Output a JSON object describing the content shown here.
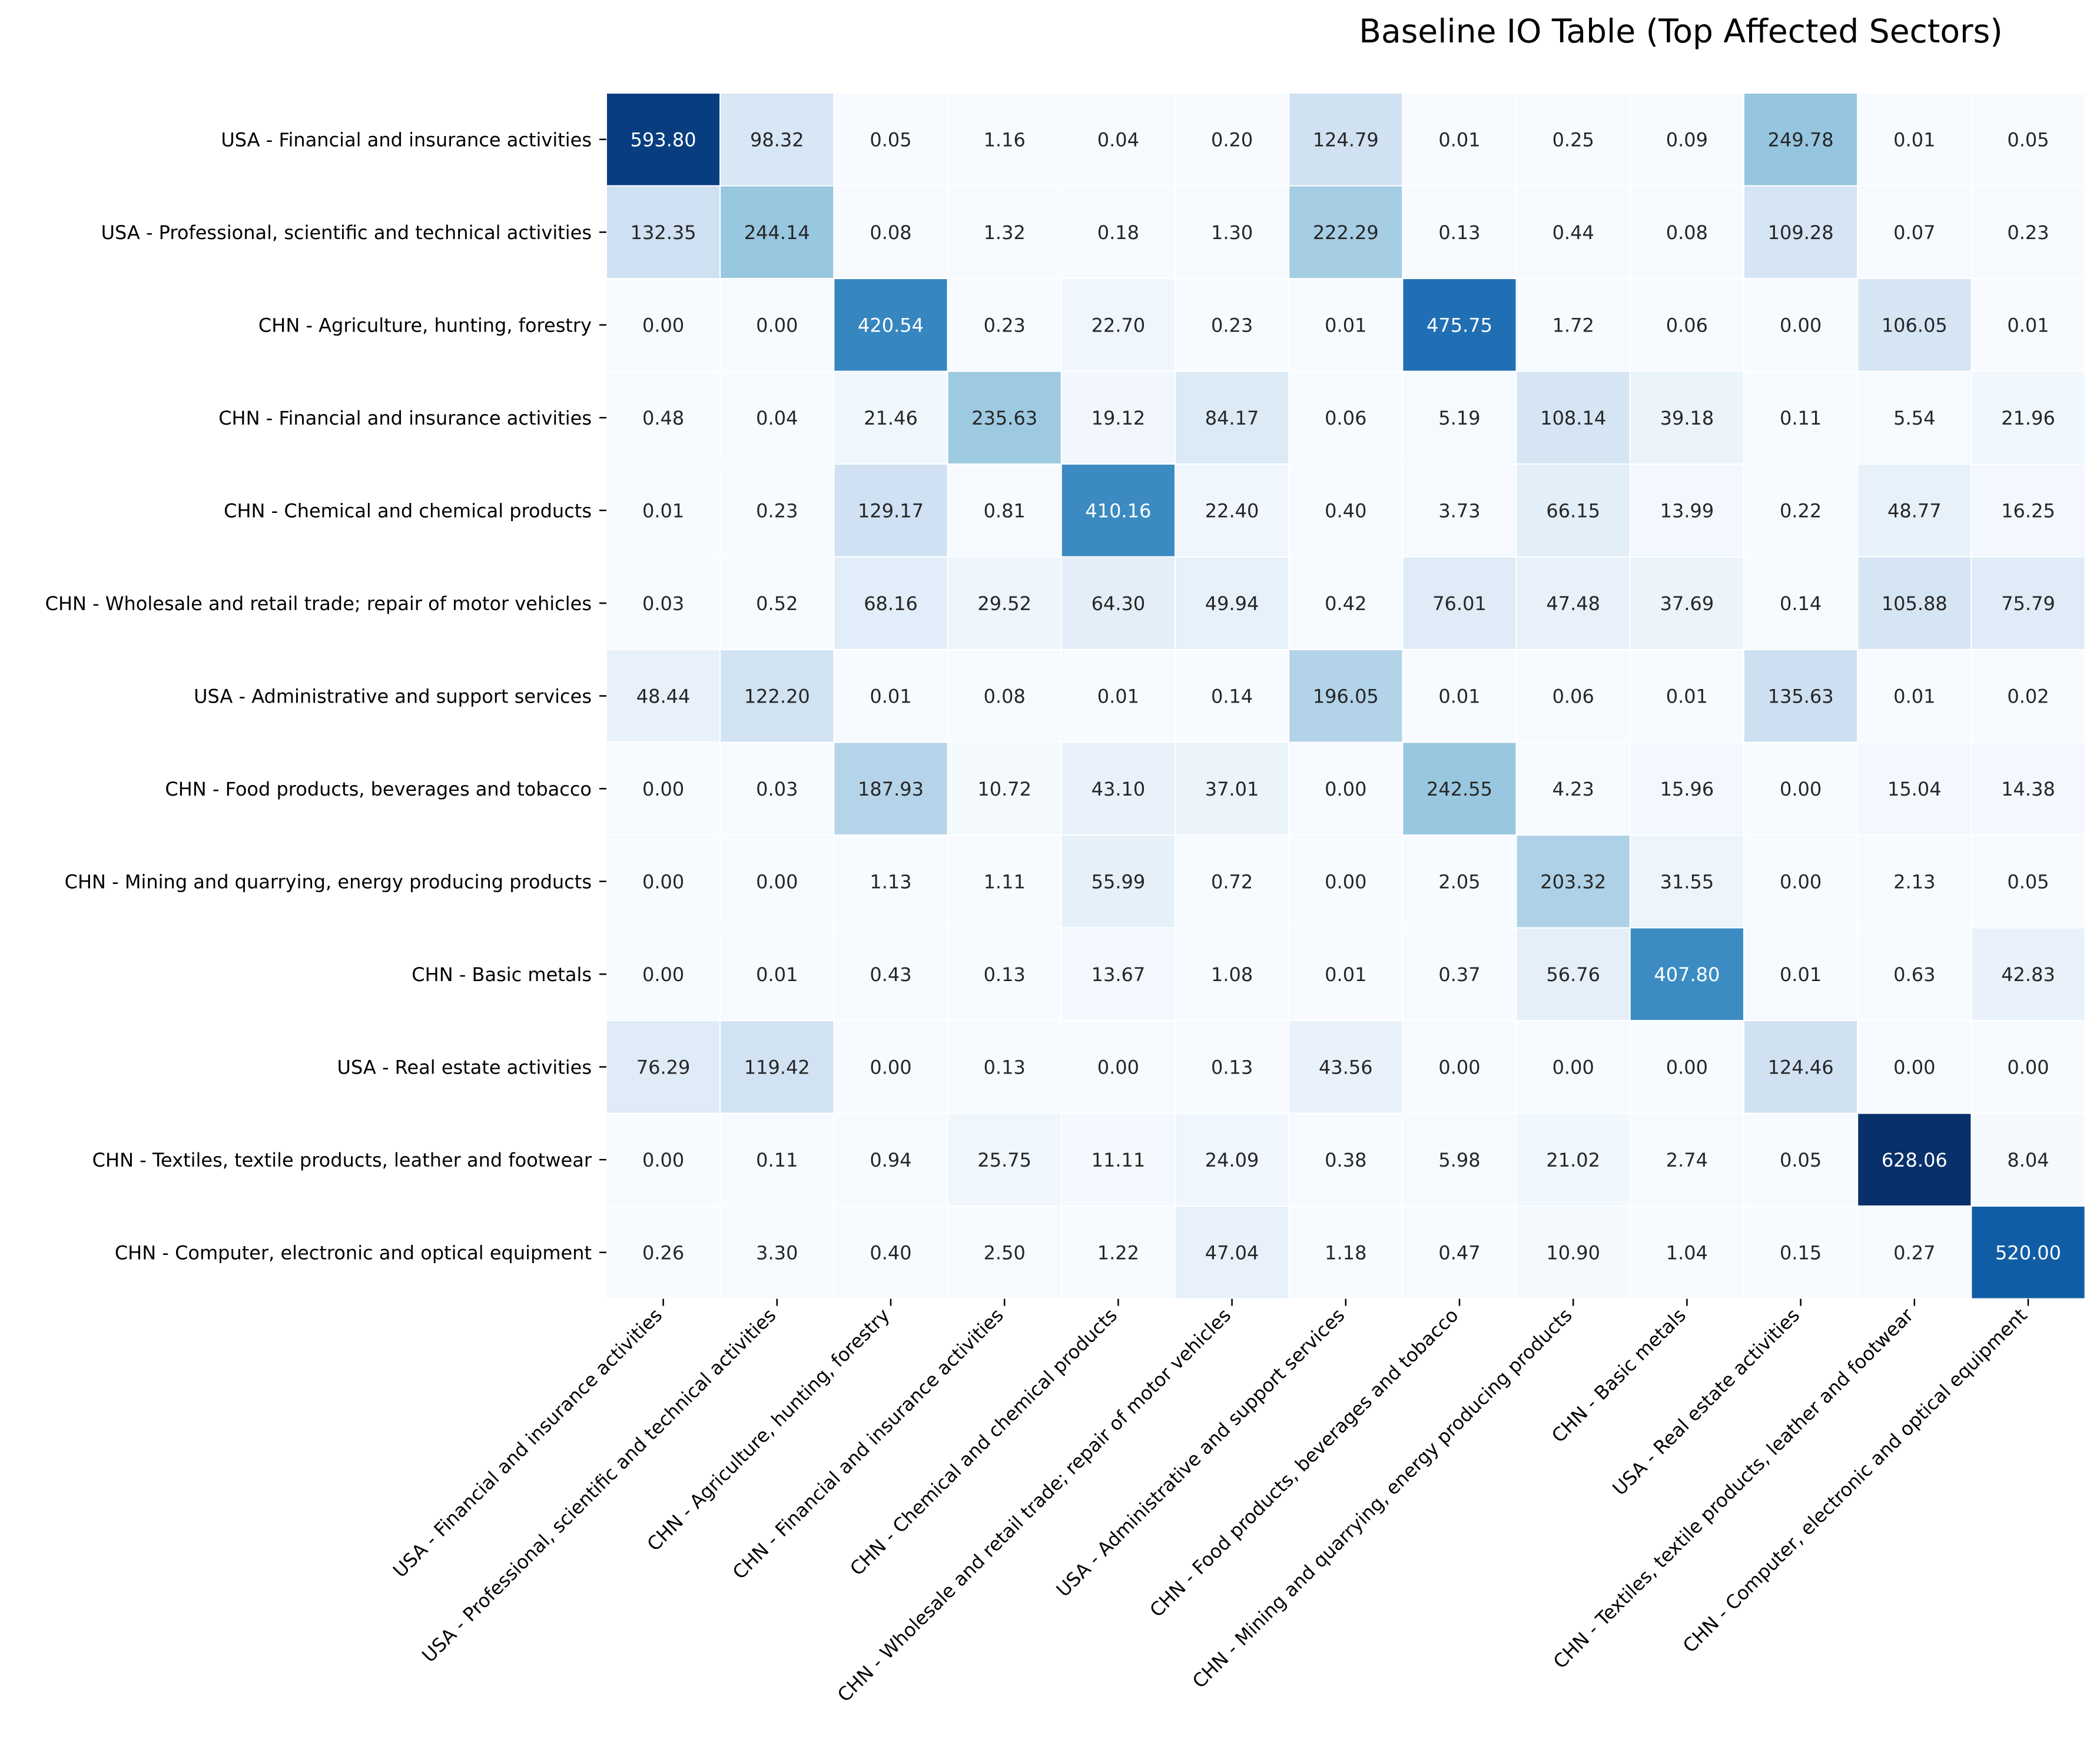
{
  "chart_data": {
    "type": "heatmap",
    "title": "Baseline IO Table (Top Affected Sectors)",
    "xlabel": "",
    "ylabel": "",
    "colormap": "Blues",
    "color_range": [
      0,
      628.06
    ],
    "value_format": "2 decimals",
    "grid": false,
    "legend": "none",
    "rows": [
      "USA - Financial and insurance activities",
      "USA - Professional, scientific and technical activities",
      "CHN - Agriculture, hunting, forestry",
      "CHN - Financial and insurance activities",
      "CHN - Chemical and chemical products",
      "CHN - Wholesale and retail trade; repair of motor vehicles",
      "USA - Administrative and support services",
      "CHN - Food products, beverages and tobacco",
      "CHN - Mining and quarrying, energy producing products",
      "CHN - Basic metals",
      "USA - Real estate activities",
      "CHN - Textiles, textile products, leather and footwear",
      "CHN - Computer, electronic and optical equipment"
    ],
    "columns": [
      "USA - Financial and insurance activities",
      "USA - Professional, scientific and technical activities",
      "CHN - Agriculture, hunting, forestry",
      "CHN - Financial and insurance activities",
      "CHN - Chemical and chemical products",
      "CHN - Wholesale and retail trade; repair of motor vehicles",
      "USA - Administrative and support services",
      "CHN - Food products, beverages and tobacco",
      "CHN - Mining and quarrying, energy producing products",
      "CHN - Basic metals",
      "USA - Real estate activities",
      "CHN - Textiles, textile products, leather and footwear",
      "CHN - Computer, electronic and optical equipment"
    ],
    "values": [
      [
        593.8,
        98.32,
        0.05,
        1.16,
        0.04,
        0.2,
        124.79,
        0.01,
        0.25,
        0.09,
        249.78,
        0.01,
        0.05
      ],
      [
        132.35,
        244.14,
        0.08,
        1.32,
        0.18,
        1.3,
        222.29,
        0.13,
        0.44,
        0.08,
        109.28,
        0.07,
        0.23
      ],
      [
        0.0,
        0.0,
        420.54,
        0.23,
        22.7,
        0.23,
        0.01,
        475.75,
        1.72,
        0.06,
        0.0,
        106.05,
        0.01
      ],
      [
        0.48,
        0.04,
        21.46,
        235.63,
        19.12,
        84.17,
        0.06,
        5.19,
        108.14,
        39.18,
        0.11,
        5.54,
        21.96
      ],
      [
        0.01,
        0.23,
        129.17,
        0.81,
        410.16,
        22.4,
        0.4,
        3.73,
        66.15,
        13.99,
        0.22,
        48.77,
        16.25
      ],
      [
        0.03,
        0.52,
        68.16,
        29.52,
        64.3,
        49.94,
        0.42,
        76.01,
        47.48,
        37.69,
        0.14,
        105.88,
        75.79
      ],
      [
        48.44,
        122.2,
        0.01,
        0.08,
        0.01,
        0.14,
        196.05,
        0.01,
        0.06,
        0.01,
        135.63,
        0.01,
        0.02
      ],
      [
        0.0,
        0.03,
        187.93,
        10.72,
        43.1,
        37.01,
        0.0,
        242.55,
        4.23,
        15.96,
        0.0,
        15.04,
        14.38
      ],
      [
        0.0,
        0.0,
        1.13,
        1.11,
        55.99,
        0.72,
        0.0,
        2.05,
        203.32,
        31.55,
        0.0,
        2.13,
        0.05
      ],
      [
        0.0,
        0.01,
        0.43,
        0.13,
        13.67,
        1.08,
        0.01,
        0.37,
        56.76,
        407.8,
        0.01,
        0.63,
        42.83
      ],
      [
        76.29,
        119.42,
        0.0,
        0.13,
        0.0,
        0.13,
        43.56,
        0.0,
        0.0,
        0.0,
        124.46,
        0.0,
        0.0
      ],
      [
        0.0,
        0.11,
        0.94,
        25.75,
        11.11,
        24.09,
        0.38,
        5.98,
        21.02,
        2.74,
        0.05,
        628.06,
        8.04
      ],
      [
        0.26,
        3.3,
        0.4,
        2.5,
        1.22,
        47.04,
        1.18,
        0.47,
        10.9,
        1.04,
        0.15,
        0.27,
        520.0
      ]
    ]
  }
}
